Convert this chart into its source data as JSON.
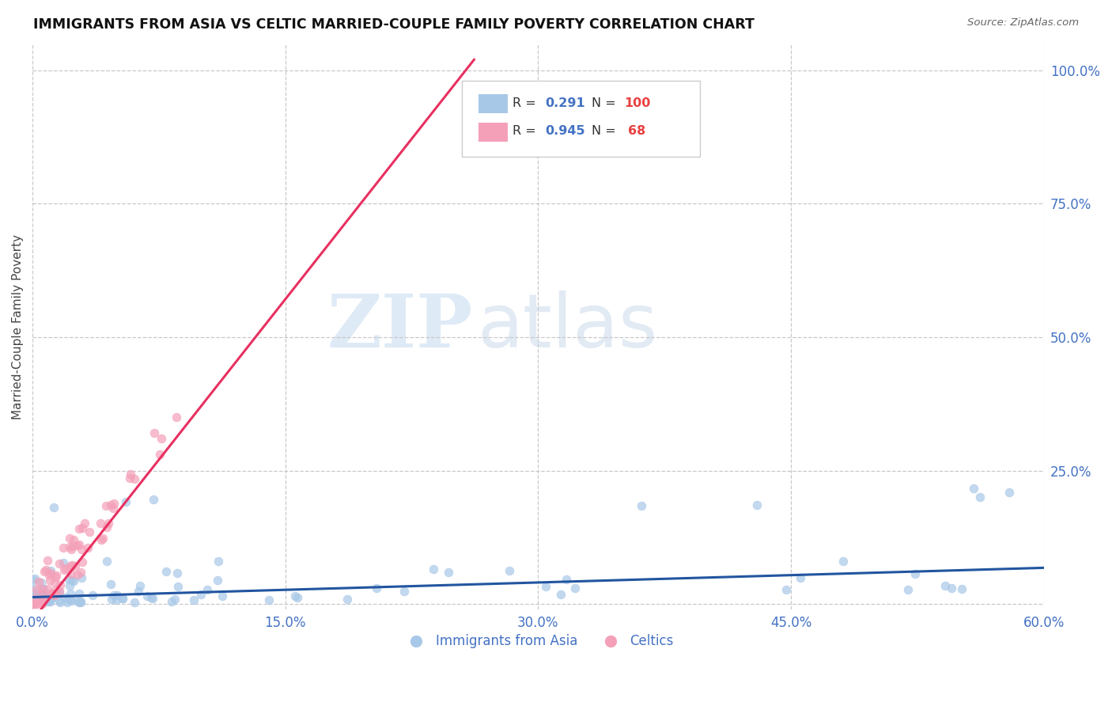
{
  "title": "IMMIGRANTS FROM ASIA VS CELTIC MARRIED-COUPLE FAMILY POVERTY CORRELATION CHART",
  "source": "Source: ZipAtlas.com",
  "ylabel": "Married-Couple Family Poverty",
  "xlabel_blue": "Immigrants from Asia",
  "xlabel_pink": "Celtics",
  "xlim": [
    0.0,
    0.6
  ],
  "ylim": [
    -0.01,
    1.05
  ],
  "xticks": [
    0.0,
    0.15,
    0.3,
    0.45,
    0.6
  ],
  "xtick_labels": [
    "0.0%",
    "15.0%",
    "30.0%",
    "45.0%",
    "60.0%"
  ],
  "yticks": [
    0.0,
    0.25,
    0.5,
    0.75,
    1.0
  ],
  "ytick_labels": [
    "",
    "25.0%",
    "50.0%",
    "75.0%",
    "100.0%"
  ],
  "blue_R": 0.291,
  "blue_N": 100,
  "pink_R": 0.945,
  "pink_N": 68,
  "blue_color": "#a8c8e8",
  "pink_color": "#f4a0b8",
  "blue_line_color": "#2255a0",
  "pink_line_color": "#e83060",
  "watermark_zip": "ZIP",
  "watermark_atlas": "atlas",
  "background_color": "#ffffff",
  "grid_color": "#c8c8cc",
  "pink_line_x0": 0.0,
  "pink_line_y0": -0.03,
  "pink_line_x1": 0.262,
  "pink_line_y1": 1.02,
  "blue_line_x0": 0.0,
  "blue_line_y0": 0.013,
  "blue_line_x1": 0.6,
  "blue_line_y1": 0.068
}
